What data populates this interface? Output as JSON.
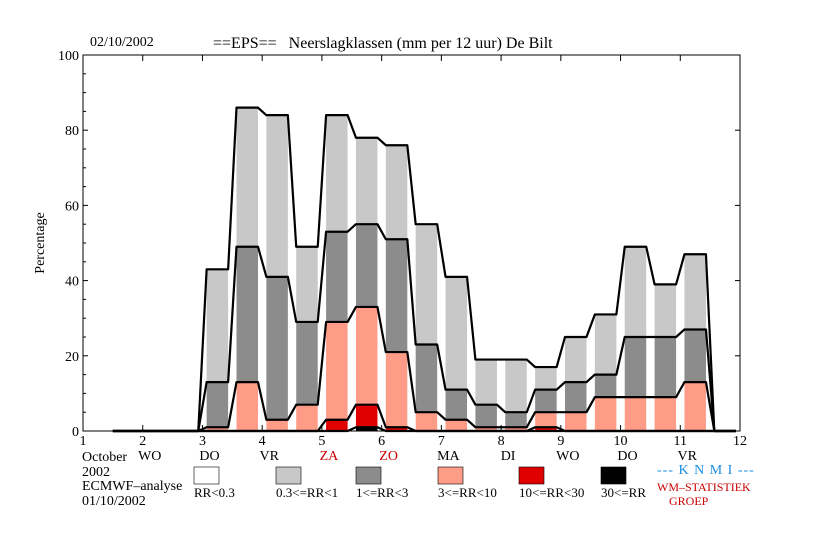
{
  "header": {
    "date": "02/10/2002",
    "title": "==EPS==   Neerslagklassen (mm per 12 uur) De Bilt"
  },
  "footer": {
    "month": "October",
    "year": "2002",
    "analysis_label": "ECMWF–analyse",
    "analysis_date": "01/10/2002"
  },
  "brand": {
    "name": "--- K N M I ---",
    "group_line1": "WM–STATISTIEK",
    "group_line2": "GROEP",
    "name_color": "#1a8ee0",
    "group_color": "#cc0000"
  },
  "legend": [
    {
      "label": "RR<0.3",
      "color": "#ffffff"
    },
    {
      "label": "0.3<=RR<1",
      "color": "#c8c8c8"
    },
    {
      "label": "1<=RR<3",
      "color": "#8c8c8c"
    },
    {
      "label": "3<=RR<10",
      "color": "#ff9c88"
    },
    {
      "label": "10<=RR<30",
      "color": "#e00000"
    },
    {
      "label": "30<=RR",
      "color": "#000000"
    }
  ],
  "chart_data": {
    "type": "area",
    "subtype": "stacked-step",
    "ylabel": "Percentage",
    "ylim": [
      0,
      100
    ],
    "yticks": [
      0,
      20,
      40,
      60,
      80,
      100
    ],
    "xlim": [
      1,
      12
    ],
    "xticks": [
      "1",
      "2",
      "3",
      "4",
      "5",
      "6",
      "7",
      "8",
      "9",
      "10",
      "11",
      "12"
    ],
    "day_labels": [
      {
        "x": 2,
        "label": "WO",
        "color": "#000000"
      },
      {
        "x": 3,
        "label": "DO",
        "color": "#000000"
      },
      {
        "x": 4,
        "label": "VR",
        "color": "#000000"
      },
      {
        "x": 5,
        "label": "ZA",
        "color": "#cc0000"
      },
      {
        "x": 6,
        "label": "ZO",
        "color": "#cc0000"
      },
      {
        "x": 7,
        "label": "MA",
        "color": "#000000"
      },
      {
        "x": 8,
        "label": "DI",
        "color": "#000000"
      },
      {
        "x": 9,
        "label": "WO",
        "color": "#000000"
      },
      {
        "x": 10,
        "label": "DO",
        "color": "#000000"
      },
      {
        "x": 11,
        "label": "VR",
        "color": "#000000"
      }
    ],
    "x": [
      1.75,
      2.25,
      2.75,
      3.25,
      3.75,
      4.25,
      4.75,
      5.25,
      5.75,
      6.25,
      6.75,
      7.25,
      7.75,
      8.25,
      8.75,
      9.25,
      9.75,
      10.25,
      10.75,
      11.25,
      11.75
    ],
    "series": [
      {
        "name": "0.3<=RR<1",
        "values": [
          0,
          0,
          0,
          43,
          86,
          84,
          49,
          84,
          78,
          76,
          55,
          41,
          19,
          19,
          17,
          25,
          31,
          49,
          39,
          47,
          0
        ]
      },
      {
        "name": "1<=RR<3",
        "values": [
          0,
          0,
          0,
          13,
          49,
          41,
          29,
          53,
          55,
          51,
          23,
          11,
          7,
          5,
          11,
          13,
          15,
          25,
          25,
          27,
          0
        ]
      },
      {
        "name": "3<=RR<10",
        "values": [
          0,
          0,
          0,
          1,
          13,
          3,
          7,
          29,
          33,
          21,
          5,
          3,
          1,
          1,
          5,
          5,
          9,
          9,
          9,
          13,
          0
        ]
      },
      {
        "name": "10<=RR<30",
        "values": [
          0,
          0,
          0,
          0,
          0,
          0,
          0,
          3,
          7,
          1,
          0,
          0,
          0,
          0,
          1,
          0,
          0,
          0,
          0,
          0,
          0
        ]
      },
      {
        "name": "30<=RR",
        "values": [
          0,
          0,
          0,
          0,
          0,
          0,
          0,
          0,
          1,
          0,
          0,
          0,
          0,
          0,
          0,
          0,
          0,
          0,
          0,
          0,
          0
        ]
      }
    ]
  }
}
